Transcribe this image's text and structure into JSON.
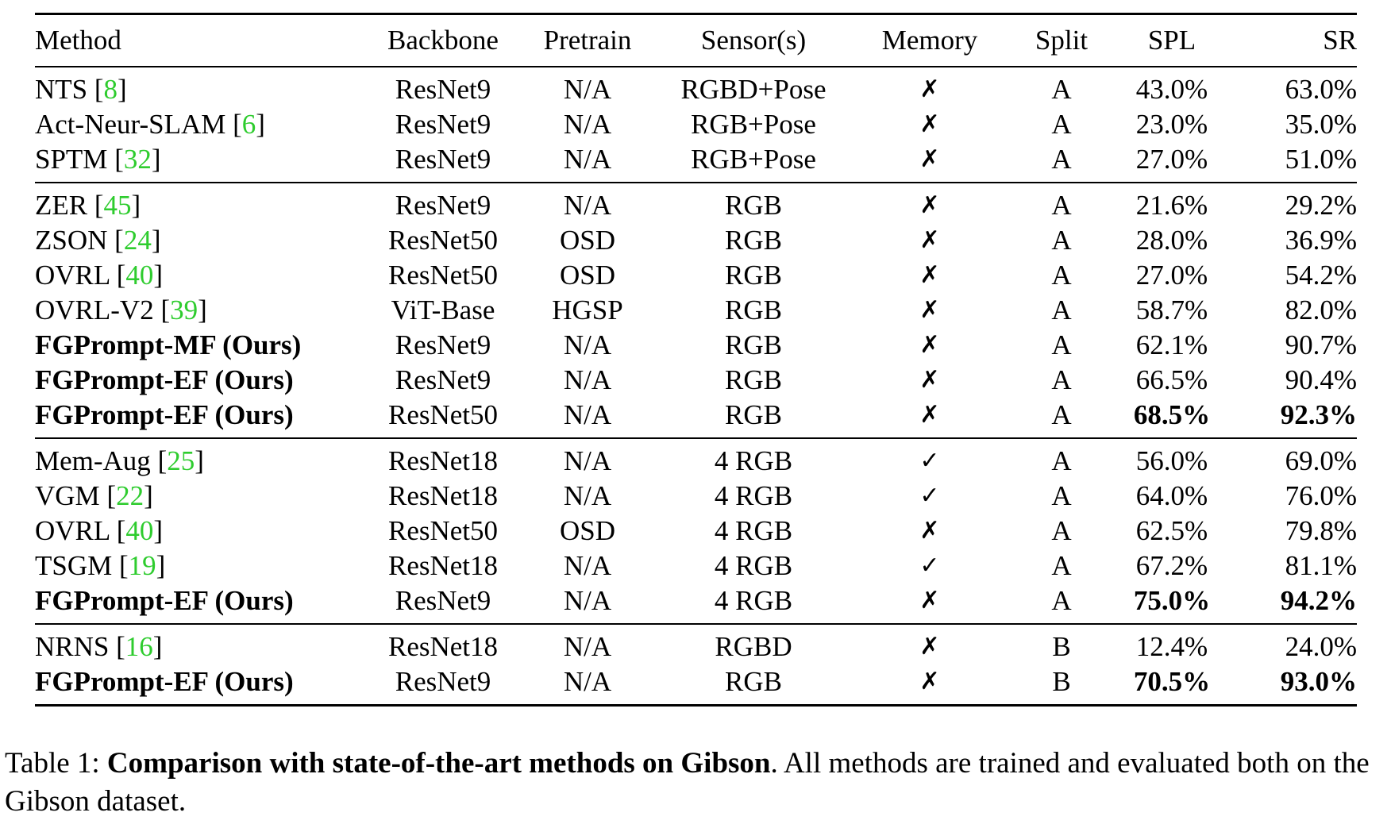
{
  "table": {
    "headers": {
      "method": "Method",
      "backbone": "Backbone",
      "pretrain": "Pretrain",
      "sensor": "Sensor(s)",
      "memory": "Memory",
      "split": "Split",
      "spl": "SPL",
      "sr": "SR"
    },
    "groups": [
      [
        {
          "name": "NTS",
          "ref": "8",
          "backbone": "ResNet9",
          "pretrain": "N/A",
          "sensor": "RGBD+Pose",
          "memory": "✗",
          "split": "A",
          "spl": "43.0%",
          "sr": "63.0%",
          "bold_name": false,
          "bold_spl": false,
          "bold_sr": false
        },
        {
          "name": "Act-Neur-SLAM",
          "ref": "6",
          "backbone": "ResNet9",
          "pretrain": "N/A",
          "sensor": "RGB+Pose",
          "memory": "✗",
          "split": "A",
          "spl": "23.0%",
          "sr": "35.0%",
          "bold_name": false,
          "bold_spl": false,
          "bold_sr": false
        },
        {
          "name": "SPTM",
          "ref": "32",
          "backbone": "ResNet9",
          "pretrain": "N/A",
          "sensor": "RGB+Pose",
          "memory": "✗",
          "split": "A",
          "spl": "27.0%",
          "sr": "51.0%",
          "bold_name": false,
          "bold_spl": false,
          "bold_sr": false
        }
      ],
      [
        {
          "name": "ZER",
          "ref": "45",
          "backbone": "ResNet9",
          "pretrain": "N/A",
          "sensor": "RGB",
          "memory": "✗",
          "split": "A",
          "spl": "21.6%",
          "sr": "29.2%",
          "bold_name": false,
          "bold_spl": false,
          "bold_sr": false
        },
        {
          "name": "ZSON",
          "ref": "24",
          "backbone": "ResNet50",
          "pretrain": "OSD",
          "sensor": "RGB",
          "memory": "✗",
          "split": "A",
          "spl": "28.0%",
          "sr": "36.9%",
          "bold_name": false,
          "bold_spl": false,
          "bold_sr": false
        },
        {
          "name": "OVRL",
          "ref": "40",
          "backbone": "ResNet50",
          "pretrain": "OSD",
          "sensor": "RGB",
          "memory": "✗",
          "split": "A",
          "spl": "27.0%",
          "sr": "54.2%",
          "bold_name": false,
          "bold_spl": false,
          "bold_sr": false
        },
        {
          "name": "OVRL-V2",
          "ref": "39",
          "backbone": "ViT-Base",
          "pretrain": "HGSP",
          "sensor": "RGB",
          "memory": "✗",
          "split": "A",
          "spl": "58.7%",
          "sr": "82.0%",
          "bold_name": false,
          "bold_spl": false,
          "bold_sr": false
        },
        {
          "name": "FGPrompt-MF (Ours)",
          "ref": "",
          "backbone": "ResNet9",
          "pretrain": "N/A",
          "sensor": "RGB",
          "memory": "✗",
          "split": "A",
          "spl": "62.1%",
          "sr": "90.7%",
          "bold_name": true,
          "bold_spl": false,
          "bold_sr": false
        },
        {
          "name": "FGPrompt-EF (Ours)",
          "ref": "",
          "backbone": "ResNet9",
          "pretrain": "N/A",
          "sensor": "RGB",
          "memory": "✗",
          "split": "A",
          "spl": "66.5%",
          "sr": "90.4%",
          "bold_name": true,
          "bold_spl": false,
          "bold_sr": false
        },
        {
          "name": "FGPrompt-EF (Ours)",
          "ref": "",
          "backbone": "ResNet50",
          "pretrain": "N/A",
          "sensor": "RGB",
          "memory": "✗",
          "split": "A",
          "spl": "68.5%",
          "sr": "92.3%",
          "bold_name": true,
          "bold_spl": true,
          "bold_sr": true
        }
      ],
      [
        {
          "name": "Mem-Aug",
          "ref": "25",
          "backbone": "ResNet18",
          "pretrain": "N/A",
          "sensor": "4 RGB",
          "memory": "✓",
          "split": "A",
          "spl": "56.0%",
          "sr": "69.0%",
          "bold_name": false,
          "bold_spl": false,
          "bold_sr": false
        },
        {
          "name": "VGM",
          "ref": "22",
          "backbone": "ResNet18",
          "pretrain": "N/A",
          "sensor": "4 RGB",
          "memory": "✓",
          "split": "A",
          "spl": "64.0%",
          "sr": "76.0%",
          "bold_name": false,
          "bold_spl": false,
          "bold_sr": false
        },
        {
          "name": "OVRL",
          "ref": "40",
          "backbone": "ResNet50",
          "pretrain": "OSD",
          "sensor": "4 RGB",
          "memory": "✗",
          "split": "A",
          "spl": "62.5%",
          "sr": "79.8%",
          "bold_name": false,
          "bold_spl": false,
          "bold_sr": false
        },
        {
          "name": "TSGM",
          "ref": "19",
          "backbone": "ResNet18",
          "pretrain": "N/A",
          "sensor": "4 RGB",
          "memory": "✓",
          "split": "A",
          "spl": "67.2%",
          "sr": "81.1%",
          "bold_name": false,
          "bold_spl": false,
          "bold_sr": false
        },
        {
          "name": "FGPrompt-EF (Ours)",
          "ref": "",
          "backbone": "ResNet9",
          "pretrain": "N/A",
          "sensor": "4 RGB",
          "memory": "✗",
          "split": "A",
          "spl": "75.0%",
          "sr": "94.2%",
          "bold_name": true,
          "bold_spl": true,
          "bold_sr": true
        }
      ],
      [
        {
          "name": "NRNS",
          "ref": "16",
          "backbone": "ResNet18",
          "pretrain": "N/A",
          "sensor": "RGBD",
          "memory": "✗",
          "split": "B",
          "spl": "12.4%",
          "sr": "24.0%",
          "bold_name": false,
          "bold_spl": false,
          "bold_sr": false
        },
        {
          "name": "FGPrompt-EF (Ours)",
          "ref": "",
          "backbone": "ResNet9",
          "pretrain": "N/A",
          "sensor": "RGB",
          "memory": "✗",
          "split": "B",
          "spl": "70.5%",
          "sr": "93.0%",
          "bold_name": true,
          "bold_spl": true,
          "bold_sr": true
        }
      ]
    ]
  },
  "caption": {
    "label": "Table 1:",
    "bold": "Comparison with state-of-the-art methods on Gibson",
    "rest": ". All methods are trained and evaluated both on the Gibson dataset."
  }
}
